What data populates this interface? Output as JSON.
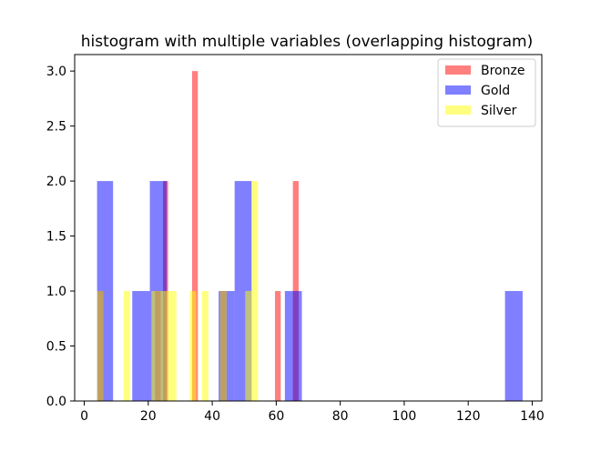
{
  "chart_data": {
    "type": "bar",
    "title": "histogram with multiple variables (overlapping histogram)",
    "xlabel": "",
    "ylabel": "",
    "xlim": [
      -3,
      143
    ],
    "ylim": [
      0,
      3.15
    ],
    "xticks": [
      0,
      20,
      40,
      60,
      80,
      100,
      120,
      140
    ],
    "yticks": [
      0.0,
      0.5,
      1.0,
      1.5,
      2.0,
      2.5,
      3.0
    ],
    "xtick_labels": [
      "0",
      "20",
      "40",
      "60",
      "80",
      "100",
      "120",
      "140"
    ],
    "ytick_labels": [
      "0.0",
      "0.5",
      "1.0",
      "1.5",
      "2.0",
      "2.5",
      "3.0"
    ],
    "grid": false,
    "legend_position": "top-right",
    "series": [
      {
        "name": "Bronze",
        "color": "#ff0000",
        "opacity": 0.5,
        "bins": [
          {
            "x0": 4.2,
            "x1": 6.0,
            "count": 1
          },
          {
            "x0": 22.1,
            "x1": 23.9,
            "count": 1
          },
          {
            "x0": 24.6,
            "x1": 26.2,
            "count": 2
          },
          {
            "x0": 33.7,
            "x1": 35.5,
            "count": 3
          },
          {
            "x0": 42.6,
            "x1": 44.4,
            "count": 1
          },
          {
            "x0": 59.6,
            "x1": 61.4,
            "count": 1
          },
          {
            "x0": 65.2,
            "x1": 67.0,
            "count": 2
          }
        ]
      },
      {
        "name": "Gold",
        "color": "#0000ff",
        "opacity": 0.5,
        "bins": [
          {
            "x0": 4.0,
            "x1": 9.0,
            "count": 2
          },
          {
            "x0": 15.0,
            "x1": 20.5,
            "count": 1
          },
          {
            "x0": 20.5,
            "x1": 25.8,
            "count": 2
          },
          {
            "x0": 42.0,
            "x1": 47.0,
            "count": 1
          },
          {
            "x0": 47.0,
            "x1": 52.3,
            "count": 2
          },
          {
            "x0": 62.7,
            "x1": 68.0,
            "count": 1
          },
          {
            "x0": 131.5,
            "x1": 137.0,
            "count": 1
          }
        ]
      },
      {
        "name": "Silver",
        "color": "#ffff00",
        "opacity": 0.5,
        "bins": [
          {
            "x0": 4.0,
            "x1": 6.0,
            "count": 1
          },
          {
            "x0": 12.3,
            "x1": 14.3,
            "count": 1
          },
          {
            "x0": 21.0,
            "x1": 26.8,
            "count": 1
          },
          {
            "x0": 26.8,
            "x1": 28.8,
            "count": 1
          },
          {
            "x0": 33.0,
            "x1": 35.0,
            "count": 1
          },
          {
            "x0": 36.8,
            "x1": 38.8,
            "count": 1
          },
          {
            "x0": 42.5,
            "x1": 44.5,
            "count": 1
          },
          {
            "x0": 50.3,
            "x1": 52.3,
            "count": 1
          },
          {
            "x0": 52.3,
            "x1": 54.3,
            "count": 2
          }
        ]
      }
    ],
    "legend": [
      {
        "name": "Bronze",
        "color": "#ff0000"
      },
      {
        "name": "Gold",
        "color": "#0000ff"
      },
      {
        "name": "Silver",
        "color": "#ffff00"
      }
    ]
  }
}
